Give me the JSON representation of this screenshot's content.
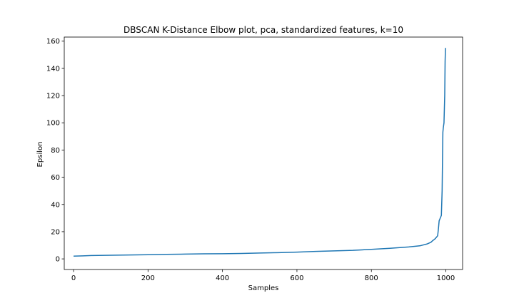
{
  "chart_data": {
    "type": "line",
    "title": "DBSCAN K-Distance Elbow plot, pca, standardized features, k=10",
    "xlabel": "Samples",
    "ylabel": "Epsilon",
    "xlim": [
      -25,
      1045
    ],
    "ylim": [
      -7.8,
      163
    ],
    "xticks": [
      0,
      200,
      400,
      600,
      800,
      1000
    ],
    "yticks": [
      0,
      20,
      40,
      60,
      80,
      100,
      120,
      140,
      160
    ],
    "grid": false,
    "legend": "none",
    "series": [
      {
        "color": "#1f77b4",
        "x": [
          0,
          25,
          50,
          100,
          150,
          200,
          250,
          300,
          350,
          400,
          450,
          500,
          550,
          600,
          650,
          700,
          750,
          800,
          850,
          900,
          930,
          950,
          960,
          965,
          970,
          975,
          978,
          980,
          982,
          985,
          988,
          990,
          992,
          993,
          994,
          995,
          996,
          997,
          998,
          999
        ],
        "y": [
          2.0,
          2.2,
          2.5,
          2.7,
          2.9,
          3.1,
          3.3,
          3.5,
          3.7,
          3.8,
          4.0,
          4.3,
          4.6,
          5.0,
          5.5,
          5.9,
          6.3,
          7.0,
          7.8,
          8.8,
          9.6,
          11.0,
          12.2,
          13.5,
          14.5,
          16.0,
          17.0,
          22.0,
          28.0,
          30.0,
          32.0,
          50.0,
          93.0,
          96.0,
          98.0,
          100.0,
          110.0,
          120.0,
          145.0,
          155.0
        ]
      }
    ]
  }
}
